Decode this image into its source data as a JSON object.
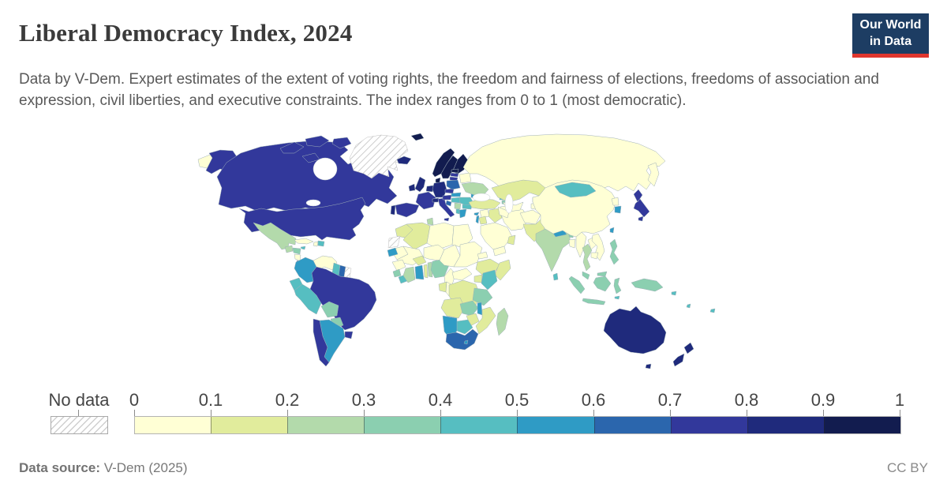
{
  "header": {
    "title": "Liberal Democracy Index, 2024",
    "subtitle": "Data by V-Dem. Expert estimates of the extent of voting rights, the freedom and fairness of elections, freedoms of association and expression, civil liberties, and executive constraints. The index ranges from 0 to 1 (most democratic).",
    "logo": {
      "line1": "Our World",
      "line2": "in Data",
      "bg_color": "#1d3d63",
      "accent_color": "#e0362e"
    }
  },
  "footer": {
    "source_label": "Data source:",
    "source_value": " V-Dem (2025)",
    "license": "CC BY"
  },
  "chart_data": {
    "type": "choropleth",
    "title": "Liberal Democracy Index, 2024",
    "year": "2024",
    "value_range": [
      0,
      1
    ],
    "legend": {
      "no_data_label": "No data",
      "tick_labels": [
        "0",
        "0.1",
        "0.2",
        "0.3",
        "0.4",
        "0.5",
        "0.6",
        "0.7",
        "0.8",
        "0.9",
        "1"
      ],
      "bin_colors": [
        "#ffffd5",
        "#e1ec9c",
        "#b3daab",
        "#8bcfb0",
        "#56bec1",
        "#2f9bc5",
        "#2b66ad",
        "#32389b",
        "#1f2a7c",
        "#121c4f"
      ]
    },
    "no_data_countries": [
      "greenland",
      "western-sahara",
      "french-guiana"
    ],
    "countries": {
      "canada": 0.75,
      "united-states": 0.73,
      "mexico": 0.25,
      "guatemala": 0.25,
      "honduras": 0.33,
      "nicaragua": 0.05,
      "costa-rica": 0.73,
      "panama": 0.52,
      "cuba": 0.05,
      "jamaica": 0.47,
      "haiti": 0.05,
      "dominican-republic": 0.45,
      "colombia": 0.55,
      "venezuela": 0.05,
      "guyana": 0.45,
      "suriname": 0.65,
      "ecuador": 0.45,
      "peru": 0.45,
      "brazil": 0.75,
      "bolivia": 0.35,
      "paraguay": 0.35,
      "uruguay": 0.76,
      "argentina": 0.55,
      "chile": 0.76,
      "iceland": 0.84,
      "norway": 0.93,
      "sweden": 0.93,
      "finland": 0.92,
      "denmark": 0.92,
      "estonia": 0.9,
      "latvia": 0.76,
      "lithuania": 0.78,
      "united-kingdom": 0.83,
      "ireland": 0.84,
      "germany": 0.83,
      "low-countries": 0.84,
      "france": 0.76,
      "switzerland": 0.86,
      "spain": 0.74,
      "portugal": 0.82,
      "italy": 0.74,
      "austria": 0.73,
      "czechia": 0.76,
      "poland": 0.63,
      "slovakia": 0.57,
      "hungary": 0.43,
      "belarus": 0.04,
      "ukraine": 0.25,
      "moldova": 0.57,
      "romania": 0.46,
      "serbia": 0.25,
      "croatia": 0.62,
      "albania": 0.45,
      "bulgaria": 0.45,
      "greece": 0.57,
      "russia": 0.03,
      "turkey": 0.13,
      "georgia": 0.45,
      "armenia": 0.35,
      "azerbaijan": 0.05,
      "cyprus": 0.55,
      "syria": 0.03,
      "israel": 0.58,
      "jordan": 0.12,
      "iraq": 0.14,
      "saudi-arabia": 0.02,
      "yemen": 0.03,
      "oman": 0.14,
      "iran": 0.04,
      "kazakhstan": 0.13,
      "uzbekistan": 0.05,
      "turkmenistan": 0.03,
      "kyrgyzstan": 0.14,
      "tajikistan": 0.04,
      "afghanistan": 0.02,
      "pakistan": 0.13,
      "india": 0.25,
      "nepal": 0.52,
      "bhutan": 0.35,
      "bangladesh": 0.07,
      "sri-lanka": 0.44,
      "myanmar": 0.04,
      "thailand": 0.22,
      "laos": 0.04,
      "vietnam": 0.07,
      "cambodia": 0.06,
      "malaysia": 0.36,
      "china": 0.04,
      "mongolia": 0.45,
      "north-korea": 0.02,
      "south-korea": 0.57,
      "japan": 0.74,
      "taiwan": 0.57,
      "philippines": 0.36,
      "indonesia": 0.36,
      "papua-new-guinea": 0.36,
      "east-timor": 0.46,
      "australia": 0.84,
      "new-zealand": 0.88,
      "fiji": 0.45,
      "solomon-islands": 0.45,
      "vanuatu": 0.45,
      "morocco": 0.13,
      "algeria": 0.14,
      "tunisia": 0.25,
      "libya": 0.04,
      "egypt": 0.04,
      "mauritania": 0.08,
      "mali": 0.07,
      "burkina-faso": 0.15,
      "niger": 0.08,
      "chad": 0.04,
      "sudan": 0.04,
      "eritrea": 0.04,
      "ethiopia": 0.12,
      "somalia": 0.13,
      "senegal": 0.55,
      "guinea": 0.09,
      "sierra-leone": 0.35,
      "liberia": 0.43,
      "ivory-coast": 0.22,
      "ghana": 0.57,
      "togo": 0.18,
      "benin": 0.25,
      "nigeria": 0.31,
      "cameroon": 0.07,
      "central-african-republic": 0.09,
      "drc": 0.15,
      "gabon": 0.14,
      "congo": 0.08,
      "uganda": 0.15,
      "kenya": 0.46,
      "tanzania": 0.32,
      "angola": 0.18,
      "zambia": 0.33,
      "malawi": 0.52,
      "mozambique": 0.18,
      "zimbabwe": 0.15,
      "botswana": 0.47,
      "namibia": 0.57,
      "south-africa": 0.65,
      "lesotho": 0.55,
      "madagascar": 0.25
    }
  }
}
